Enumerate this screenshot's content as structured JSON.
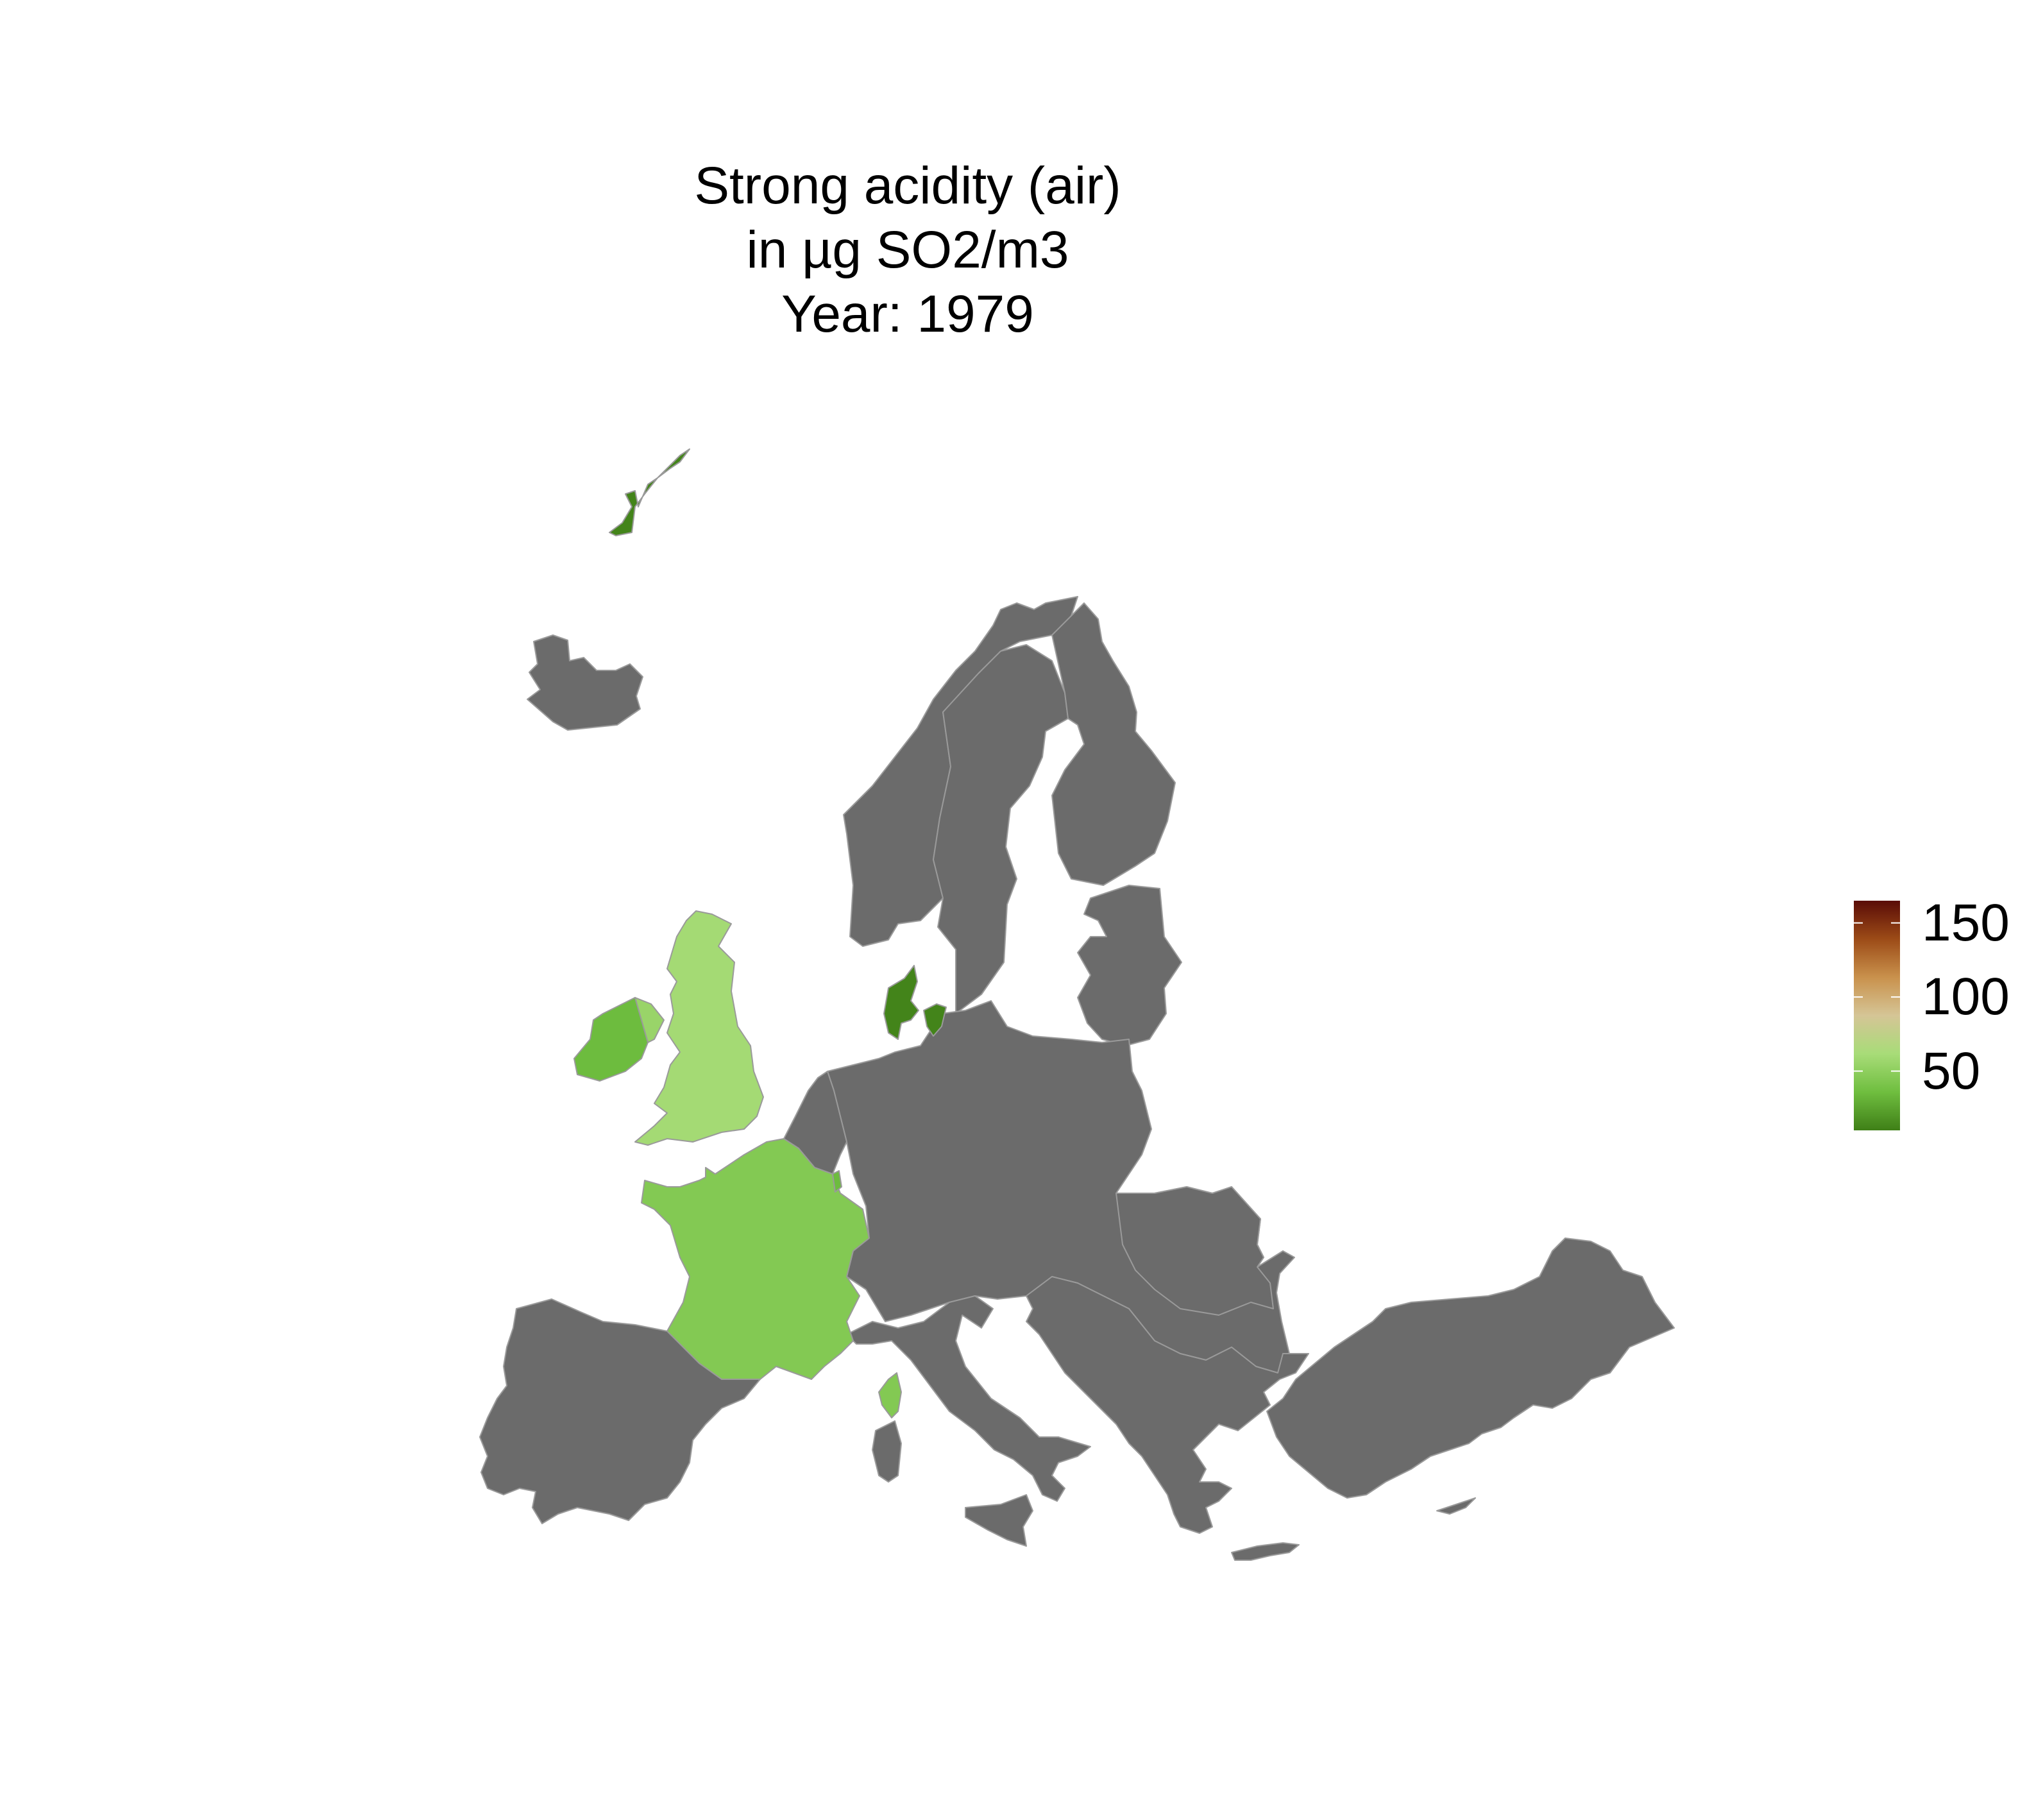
{
  "title": {
    "line1": "Strong acidity (air)",
    "line2": "in µg SO2/m3",
    "line3": "Year: 1979"
  },
  "legend": {
    "ticks": [
      "150",
      "100",
      "50"
    ],
    "tick_values": [
      150,
      100,
      50
    ],
    "range": [
      10,
      165
    ],
    "gradient": [
      "#3f7f17",
      "#6fbe3f",
      "#a8dc78",
      "#d5c596",
      "#c9914c",
      "#9c4b17",
      "#5a0c07"
    ]
  },
  "colors": {
    "no_data": "#6b6b6b",
    "border": "#9a9a9a",
    "background": "#ffffff"
  },
  "chart_data": {
    "type": "choropleth",
    "title": "Strong acidity (air)\nin µg SO2/m3\nYear: 1979",
    "values": [
      {
        "region": "Faroe Islands",
        "value": 12
      },
      {
        "region": "Denmark",
        "value": 12
      },
      {
        "region": "Ireland",
        "value": 35
      },
      {
        "region": "Northern Ireland",
        "value": 55
      },
      {
        "region": "United Kingdom",
        "value": 60
      },
      {
        "region": "France",
        "value": 45
      },
      {
        "region": "Corsica",
        "value": 45
      },
      {
        "region": "Luxembourg",
        "value": 35
      }
    ]
  }
}
